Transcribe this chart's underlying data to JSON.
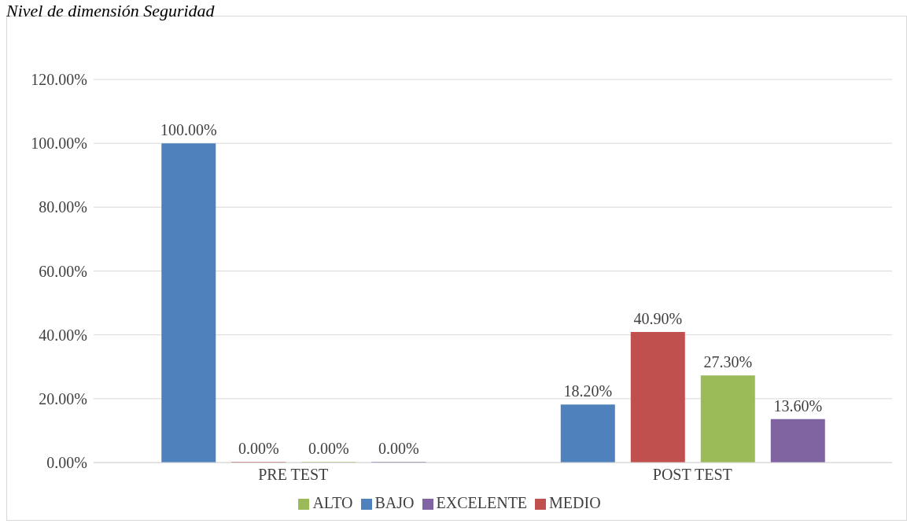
{
  "chart_data": {
    "type": "bar",
    "title": "Nivel de dimensión Seguridad",
    "categories": [
      "PRE TEST",
      "POST TEST"
    ],
    "series": [
      {
        "name": "BAJO",
        "color": "#4f81bd",
        "values": [
          100,
          18.2
        ],
        "value_labels": [
          "100.00%",
          "18.20%"
        ]
      },
      {
        "name": "MEDIO",
        "color": "#c0504d",
        "values": [
          0,
          40.9
        ],
        "value_labels": [
          "0.00%",
          "40.90%"
        ]
      },
      {
        "name": "ALTO",
        "color": "#9bbb59",
        "values": [
          0,
          27.3
        ],
        "value_labels": [
          "0.00%",
          "27.30%"
        ]
      },
      {
        "name": "EXCELENTE",
        "color": "#8064a2",
        "values": [
          0,
          13.6
        ],
        "value_labels": [
          "0.00%",
          "13.60%"
        ]
      }
    ],
    "ylim": [
      0,
      120
    ],
    "yticks": [
      {
        "value": 0,
        "label": "0.00%"
      },
      {
        "value": 20,
        "label": "20.00%"
      },
      {
        "value": 40,
        "label": "40.00%"
      },
      {
        "value": 60,
        "label": "60.00%"
      },
      {
        "value": 80,
        "label": "80.00%"
      },
      {
        "value": 100,
        "label": "100.00%"
      },
      {
        "value": 120,
        "label": "120.00%"
      }
    ],
    "grid": "y",
    "legend": "bottom"
  }
}
